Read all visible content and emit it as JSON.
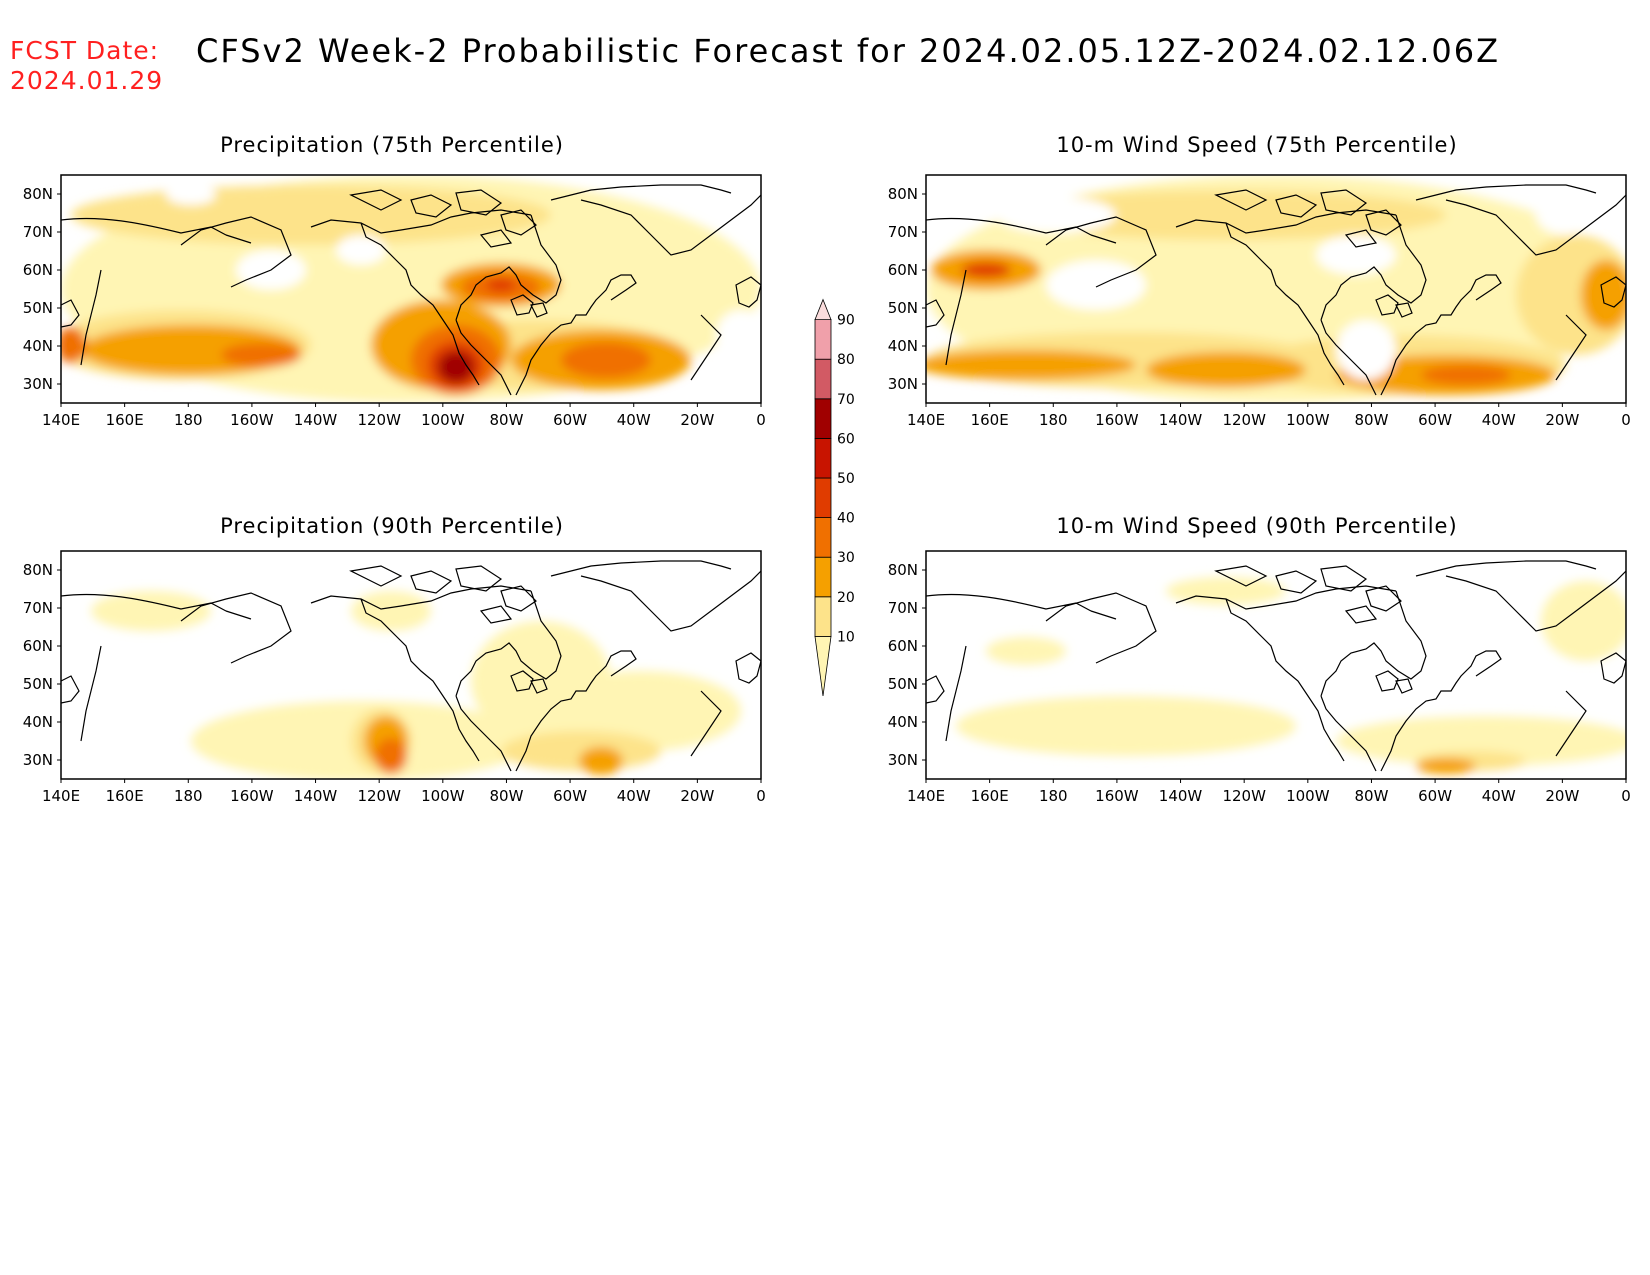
{
  "header": {
    "fcst_label": "FCST Date:",
    "fcst_date": "2024.01.29",
    "title": "CFSv2 Week-2 Probabilistic Forecast for 2024.02.05.12Z-2024.02.12.06Z"
  },
  "panels": [
    {
      "id": "precip75",
      "title": "Precipitation (75th Percentile)"
    },
    {
      "id": "wind75",
      "title": "10-m Wind Speed (75th Percentile)"
    },
    {
      "id": "precip90",
      "title": "Precipitation (90th Percentile)"
    },
    {
      "id": "wind90",
      "title": "10-m Wind Speed (90th Percentile)"
    }
  ],
  "axes": {
    "lon_labels": [
      "140E",
      "160E",
      "180",
      "160W",
      "140W",
      "120W",
      "100W",
      "80W",
      "60W",
      "40W",
      "20W",
      "0"
    ],
    "lat_labels": [
      "30N",
      "40N",
      "50N",
      "60N",
      "70N",
      "80N"
    ]
  },
  "colorbar": {
    "levels": [
      "10",
      "20",
      "30",
      "40",
      "50",
      "60",
      "70",
      "80",
      "90"
    ],
    "colors": [
      "#fff5b4",
      "#fde38a",
      "#f5a000",
      "#f07000",
      "#e03c00",
      "#c81400",
      "#a00000",
      "#d25a64",
      "#f0a0aa",
      "#fadcdc"
    ]
  }
}
